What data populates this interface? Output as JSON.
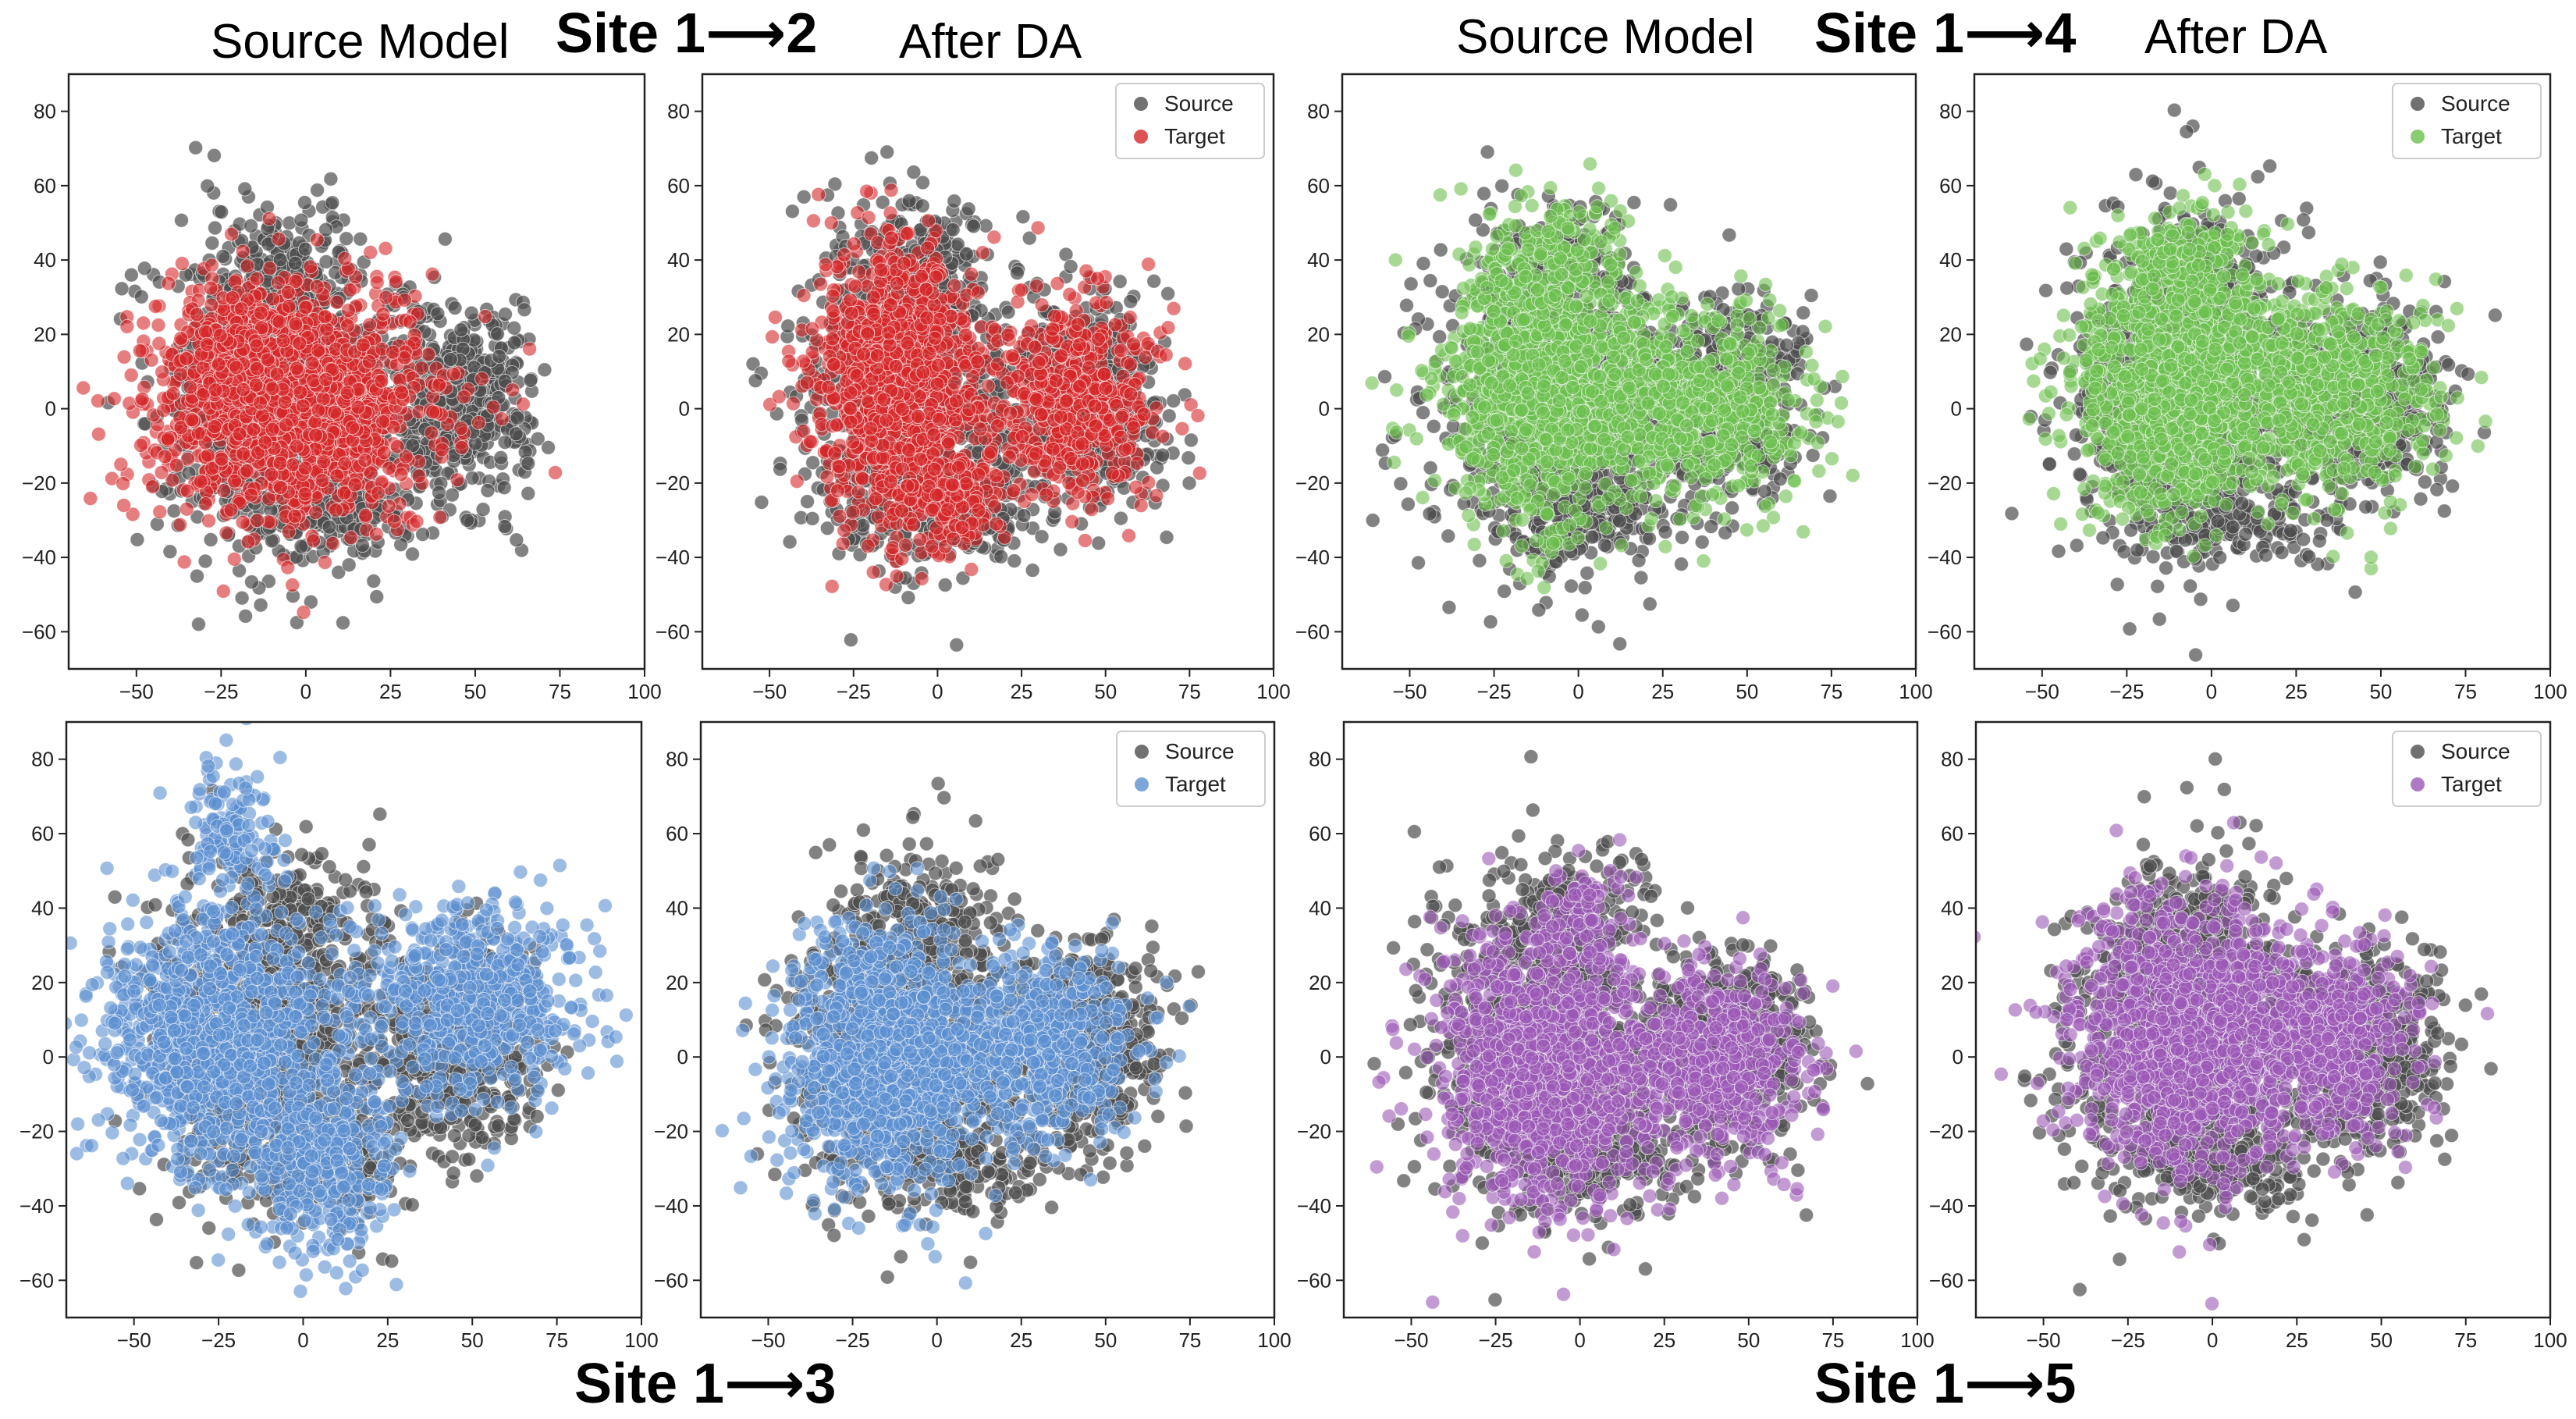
{
  "headers": {
    "top": {
      "left_source_title": "Source Model",
      "left_site": "Site 1⟶2",
      "left_after_title": "After DA",
      "right_source_title": "Source Model",
      "right_site": "Site 1⟶4",
      "right_after_title": "After DA"
    },
    "bottom": {
      "left_site": "Site 1⟶3",
      "right_site": "Site 1⟶5"
    }
  },
  "colors": {
    "source": "#4d4d4d",
    "red": "#d62728",
    "green": "#6cbf4f",
    "blue": "#5b8fd0",
    "purple": "#9b59b6"
  },
  "chart_data": [
    {
      "type": "scatter",
      "id": "site12-source-model",
      "xlim": [
        -70,
        100
      ],
      "ylim": [
        -70,
        90
      ],
      "xticks": [
        -50,
        -25,
        0,
        25,
        50,
        75,
        100
      ],
      "yticks": [
        -60,
        -40,
        -20,
        0,
        20,
        40,
        60,
        80
      ],
      "legend": null,
      "target_color": "red",
      "series": [
        {
          "name": "Source",
          "clusters": [
            [
              -8,
              5,
              17,
              22,
              900
            ],
            [
              45,
              2,
              11,
              13,
              520
            ],
            [
              -5,
              38,
              8,
              7,
              100
            ],
            [
              5,
              -28,
              14,
              6,
              160
            ]
          ]
        },
        {
          "name": "Target",
          "clusters": [
            [
              -5,
              2,
              20,
              15,
              1700
            ],
            [
              -18,
              18,
              8,
              8,
              200
            ]
          ]
        }
      ]
    },
    {
      "type": "scatter",
      "id": "site12-after-da",
      "xlim": [
        -70,
        100
      ],
      "ylim": [
        -70,
        90
      ],
      "xticks": [
        -50,
        -25,
        0,
        25,
        50,
        75,
        100
      ],
      "yticks": [
        -60,
        -40,
        -20,
        0,
        20,
        40,
        60,
        80
      ],
      "legend": {
        "position": "top-right",
        "entries": [
          "Source",
          "Target"
        ]
      },
      "target_color": "red",
      "series": [
        {
          "name": "Source",
          "clusters": [
            [
              -8,
              5,
              17,
              22,
              900
            ],
            [
              45,
              2,
              11,
              13,
              520
            ],
            [
              -5,
              38,
              8,
              7,
              100
            ],
            [
              5,
              -28,
              14,
              6,
              160
            ]
          ]
        },
        {
          "name": "Target",
          "clusters": [
            [
              -12,
              8,
              13,
              20,
              1100
            ],
            [
              40,
              3,
              12,
              13,
              550
            ],
            [
              5,
              -25,
              8,
              8,
              160
            ]
          ]
        }
      ]
    },
    {
      "type": "scatter",
      "id": "site14-source-model",
      "xlim": [
        -70,
        100
      ],
      "ylim": [
        -70,
        90
      ],
      "xticks": [
        -50,
        -25,
        0,
        25,
        50,
        75,
        100
      ],
      "yticks": [
        -60,
        -40,
        -20,
        0,
        20,
        40,
        60,
        80
      ],
      "legend": null,
      "target_color": "green",
      "series": [
        {
          "name": "Source",
          "clusters": [
            [
              -8,
              5,
              17,
              22,
              900
            ],
            [
              45,
              2,
              11,
              13,
              520
            ],
            [
              -5,
              38,
              8,
              7,
              100
            ],
            [
              5,
              -28,
              14,
              6,
              160
            ]
          ]
        },
        {
          "name": "Target",
          "clusters": [
            [
              -10,
              8,
              15,
              18,
              1300
            ],
            [
              35,
              2,
              16,
              13,
              650
            ],
            [
              -8,
              42,
              10,
              8,
              120
            ]
          ]
        }
      ]
    },
    {
      "type": "scatter",
      "id": "site14-after-da",
      "xlim": [
        -70,
        100
      ],
      "ylim": [
        -70,
        90
      ],
      "xticks": [
        -50,
        -25,
        0,
        25,
        50,
        75,
        100
      ],
      "yticks": [
        -60,
        -40,
        -20,
        0,
        20,
        40,
        60,
        80
      ],
      "legend": {
        "position": "top-right",
        "entries": [
          "Source",
          "Target"
        ]
      },
      "target_color": "green",
      "series": [
        {
          "name": "Source",
          "clusters": [
            [
              -8,
              5,
              17,
              22,
              900
            ],
            [
              45,
              2,
              11,
              13,
              520
            ],
            [
              -5,
              38,
              8,
              7,
              100
            ],
            [
              5,
              -28,
              14,
              6,
              160
            ]
          ]
        },
        {
          "name": "Target",
          "clusters": [
            [
              -10,
              8,
              15,
              18,
              1300
            ],
            [
              35,
              5,
              16,
              13,
              650
            ],
            [
              -8,
              40,
              9,
              8,
              120
            ]
          ]
        }
      ]
    },
    {
      "type": "scatter",
      "id": "site13-source-model",
      "xlim": [
        -70,
        100
      ],
      "ylim": [
        -70,
        90
      ],
      "xticks": [
        -50,
        -25,
        0,
        25,
        50,
        75,
        100
      ],
      "yticks": [
        -60,
        -40,
        -20,
        0,
        20,
        40,
        60,
        80
      ],
      "legend": null,
      "target_color": "blue",
      "series": [
        {
          "name": "Source",
          "clusters": [
            [
              -8,
              5,
              17,
              22,
              900
            ],
            [
              45,
              2,
              11,
              13,
              520
            ],
            [
              -5,
              38,
              8,
              7,
              100
            ],
            [
              5,
              -28,
              14,
              6,
              160
            ]
          ]
        },
        {
          "name": "Target",
          "clusters": [
            [
              -25,
              5,
              18,
              17,
              1100
            ],
            [
              50,
              15,
              17,
              13,
              650
            ],
            [
              5,
              -30,
              12,
              13,
              400
            ],
            [
              -22,
              60,
              7,
              10,
              140
            ]
          ]
        }
      ]
    },
    {
      "type": "scatter",
      "id": "site13-after-da",
      "xlim": [
        -70,
        100
      ],
      "ylim": [
        -70,
        90
      ],
      "xticks": [
        -50,
        -25,
        0,
        25,
        50,
        75,
        100
      ],
      "yticks": [
        -60,
        -40,
        -20,
        0,
        20,
        40,
        60,
        80
      ],
      "legend": {
        "position": "top-right",
        "entries": [
          "Source",
          "Target"
        ]
      },
      "target_color": "blue",
      "series": [
        {
          "name": "Source",
          "clusters": [
            [
              -8,
              5,
              17,
              22,
              900
            ],
            [
              45,
              2,
              11,
              13,
              520
            ],
            [
              -5,
              38,
              8,
              7,
              100
            ],
            [
              5,
              -28,
              14,
              6,
              160
            ]
          ]
        },
        {
          "name": "Target",
          "clusters": [
            [
              -15,
              0,
              15,
              17,
              1200
            ],
            [
              30,
              3,
              14,
              12,
              600
            ]
          ]
        }
      ]
    },
    {
      "type": "scatter",
      "id": "site15-source-model",
      "xlim": [
        -70,
        100
      ],
      "ylim": [
        -70,
        90
      ],
      "xticks": [
        -50,
        -25,
        0,
        25,
        50,
        75,
        100
      ],
      "yticks": [
        -60,
        -40,
        -20,
        0,
        20,
        40,
        60,
        80
      ],
      "legend": null,
      "target_color": "purple",
      "series": [
        {
          "name": "Source",
          "clusters": [
            [
              -8,
              5,
              17,
              22,
              900
            ],
            [
              45,
              2,
              11,
              13,
              520
            ],
            [
              -5,
              38,
              8,
              7,
              100
            ],
            [
              5,
              -28,
              14,
              6,
              160
            ]
          ]
        },
        {
          "name": "Target",
          "clusters": [
            [
              -10,
              -3,
              16,
              18,
              1200
            ],
            [
              40,
              -2,
              14,
              12,
              600
            ],
            [
              0,
              40,
              8,
              7,
              80
            ]
          ]
        }
      ]
    },
    {
      "type": "scatter",
      "id": "site15-after-da",
      "xlim": [
        -70,
        100
      ],
      "ylim": [
        -70,
        90
      ],
      "xticks": [
        -50,
        -25,
        0,
        25,
        50,
        75,
        100
      ],
      "yticks": [
        -60,
        -40,
        -20,
        0,
        20,
        40,
        60,
        80
      ],
      "legend": {
        "position": "top-right",
        "entries": [
          "Source",
          "Target"
        ]
      },
      "target_color": "purple",
      "series": [
        {
          "name": "Source",
          "clusters": [
            [
              -8,
              5,
              17,
              22,
              900
            ],
            [
              45,
              2,
              11,
              13,
              520
            ],
            [
              -5,
              38,
              8,
              7,
              100
            ],
            [
              5,
              -28,
              14,
              6,
              160
            ]
          ]
        },
        {
          "name": "Target",
          "clusters": [
            [
              -10,
              5,
              16,
              18,
              1200
            ],
            [
              32,
              5,
              14,
              13,
              600
            ]
          ]
        }
      ]
    }
  ]
}
